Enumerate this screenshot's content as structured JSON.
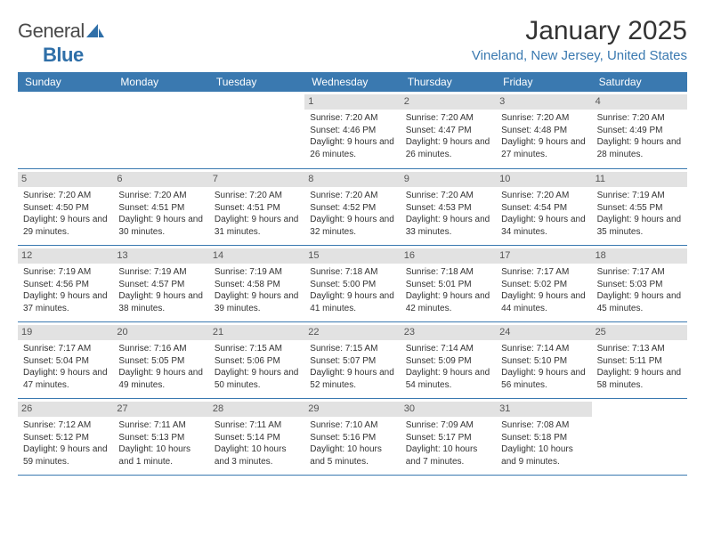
{
  "brand": {
    "general": "General",
    "blue": "Blue"
  },
  "header": {
    "title": "January 2025",
    "location": "Vineland, New Jersey, United States"
  },
  "colors": {
    "accent": "#3a79b0",
    "daybar": "#e2e2e2",
    "text": "#333333",
    "bg": "#ffffff"
  },
  "weekdays": [
    "Sunday",
    "Monday",
    "Tuesday",
    "Wednesday",
    "Thursday",
    "Friday",
    "Saturday"
  ],
  "startOffset": 3,
  "days": [
    {
      "n": 1,
      "sunrise": "7:20 AM",
      "sunset": "4:46 PM",
      "daylight": "9 hours and 26 minutes."
    },
    {
      "n": 2,
      "sunrise": "7:20 AM",
      "sunset": "4:47 PM",
      "daylight": "9 hours and 26 minutes."
    },
    {
      "n": 3,
      "sunrise": "7:20 AM",
      "sunset": "4:48 PM",
      "daylight": "9 hours and 27 minutes."
    },
    {
      "n": 4,
      "sunrise": "7:20 AM",
      "sunset": "4:49 PM",
      "daylight": "9 hours and 28 minutes."
    },
    {
      "n": 5,
      "sunrise": "7:20 AM",
      "sunset": "4:50 PM",
      "daylight": "9 hours and 29 minutes."
    },
    {
      "n": 6,
      "sunrise": "7:20 AM",
      "sunset": "4:51 PM",
      "daylight": "9 hours and 30 minutes."
    },
    {
      "n": 7,
      "sunrise": "7:20 AM",
      "sunset": "4:51 PM",
      "daylight": "9 hours and 31 minutes."
    },
    {
      "n": 8,
      "sunrise": "7:20 AM",
      "sunset": "4:52 PM",
      "daylight": "9 hours and 32 minutes."
    },
    {
      "n": 9,
      "sunrise": "7:20 AM",
      "sunset": "4:53 PM",
      "daylight": "9 hours and 33 minutes."
    },
    {
      "n": 10,
      "sunrise": "7:20 AM",
      "sunset": "4:54 PM",
      "daylight": "9 hours and 34 minutes."
    },
    {
      "n": 11,
      "sunrise": "7:19 AM",
      "sunset": "4:55 PM",
      "daylight": "9 hours and 35 minutes."
    },
    {
      "n": 12,
      "sunrise": "7:19 AM",
      "sunset": "4:56 PM",
      "daylight": "9 hours and 37 minutes."
    },
    {
      "n": 13,
      "sunrise": "7:19 AM",
      "sunset": "4:57 PM",
      "daylight": "9 hours and 38 minutes."
    },
    {
      "n": 14,
      "sunrise": "7:19 AM",
      "sunset": "4:58 PM",
      "daylight": "9 hours and 39 minutes."
    },
    {
      "n": 15,
      "sunrise": "7:18 AM",
      "sunset": "5:00 PM",
      "daylight": "9 hours and 41 minutes."
    },
    {
      "n": 16,
      "sunrise": "7:18 AM",
      "sunset": "5:01 PM",
      "daylight": "9 hours and 42 minutes."
    },
    {
      "n": 17,
      "sunrise": "7:17 AM",
      "sunset": "5:02 PM",
      "daylight": "9 hours and 44 minutes."
    },
    {
      "n": 18,
      "sunrise": "7:17 AM",
      "sunset": "5:03 PM",
      "daylight": "9 hours and 45 minutes."
    },
    {
      "n": 19,
      "sunrise": "7:17 AM",
      "sunset": "5:04 PM",
      "daylight": "9 hours and 47 minutes."
    },
    {
      "n": 20,
      "sunrise": "7:16 AM",
      "sunset": "5:05 PM",
      "daylight": "9 hours and 49 minutes."
    },
    {
      "n": 21,
      "sunrise": "7:15 AM",
      "sunset": "5:06 PM",
      "daylight": "9 hours and 50 minutes."
    },
    {
      "n": 22,
      "sunrise": "7:15 AM",
      "sunset": "5:07 PM",
      "daylight": "9 hours and 52 minutes."
    },
    {
      "n": 23,
      "sunrise": "7:14 AM",
      "sunset": "5:09 PM",
      "daylight": "9 hours and 54 minutes."
    },
    {
      "n": 24,
      "sunrise": "7:14 AM",
      "sunset": "5:10 PM",
      "daylight": "9 hours and 56 minutes."
    },
    {
      "n": 25,
      "sunrise": "7:13 AM",
      "sunset": "5:11 PM",
      "daylight": "9 hours and 58 minutes."
    },
    {
      "n": 26,
      "sunrise": "7:12 AM",
      "sunset": "5:12 PM",
      "daylight": "9 hours and 59 minutes."
    },
    {
      "n": 27,
      "sunrise": "7:11 AM",
      "sunset": "5:13 PM",
      "daylight": "10 hours and 1 minute."
    },
    {
      "n": 28,
      "sunrise": "7:11 AM",
      "sunset": "5:14 PM",
      "daylight": "10 hours and 3 minutes."
    },
    {
      "n": 29,
      "sunrise": "7:10 AM",
      "sunset": "5:16 PM",
      "daylight": "10 hours and 5 minutes."
    },
    {
      "n": 30,
      "sunrise": "7:09 AM",
      "sunset": "5:17 PM",
      "daylight": "10 hours and 7 minutes."
    },
    {
      "n": 31,
      "sunrise": "7:08 AM",
      "sunset": "5:18 PM",
      "daylight": "10 hours and 9 minutes."
    }
  ],
  "labels": {
    "sunrise": "Sunrise:",
    "sunset": "Sunset:",
    "daylight": "Daylight:"
  }
}
